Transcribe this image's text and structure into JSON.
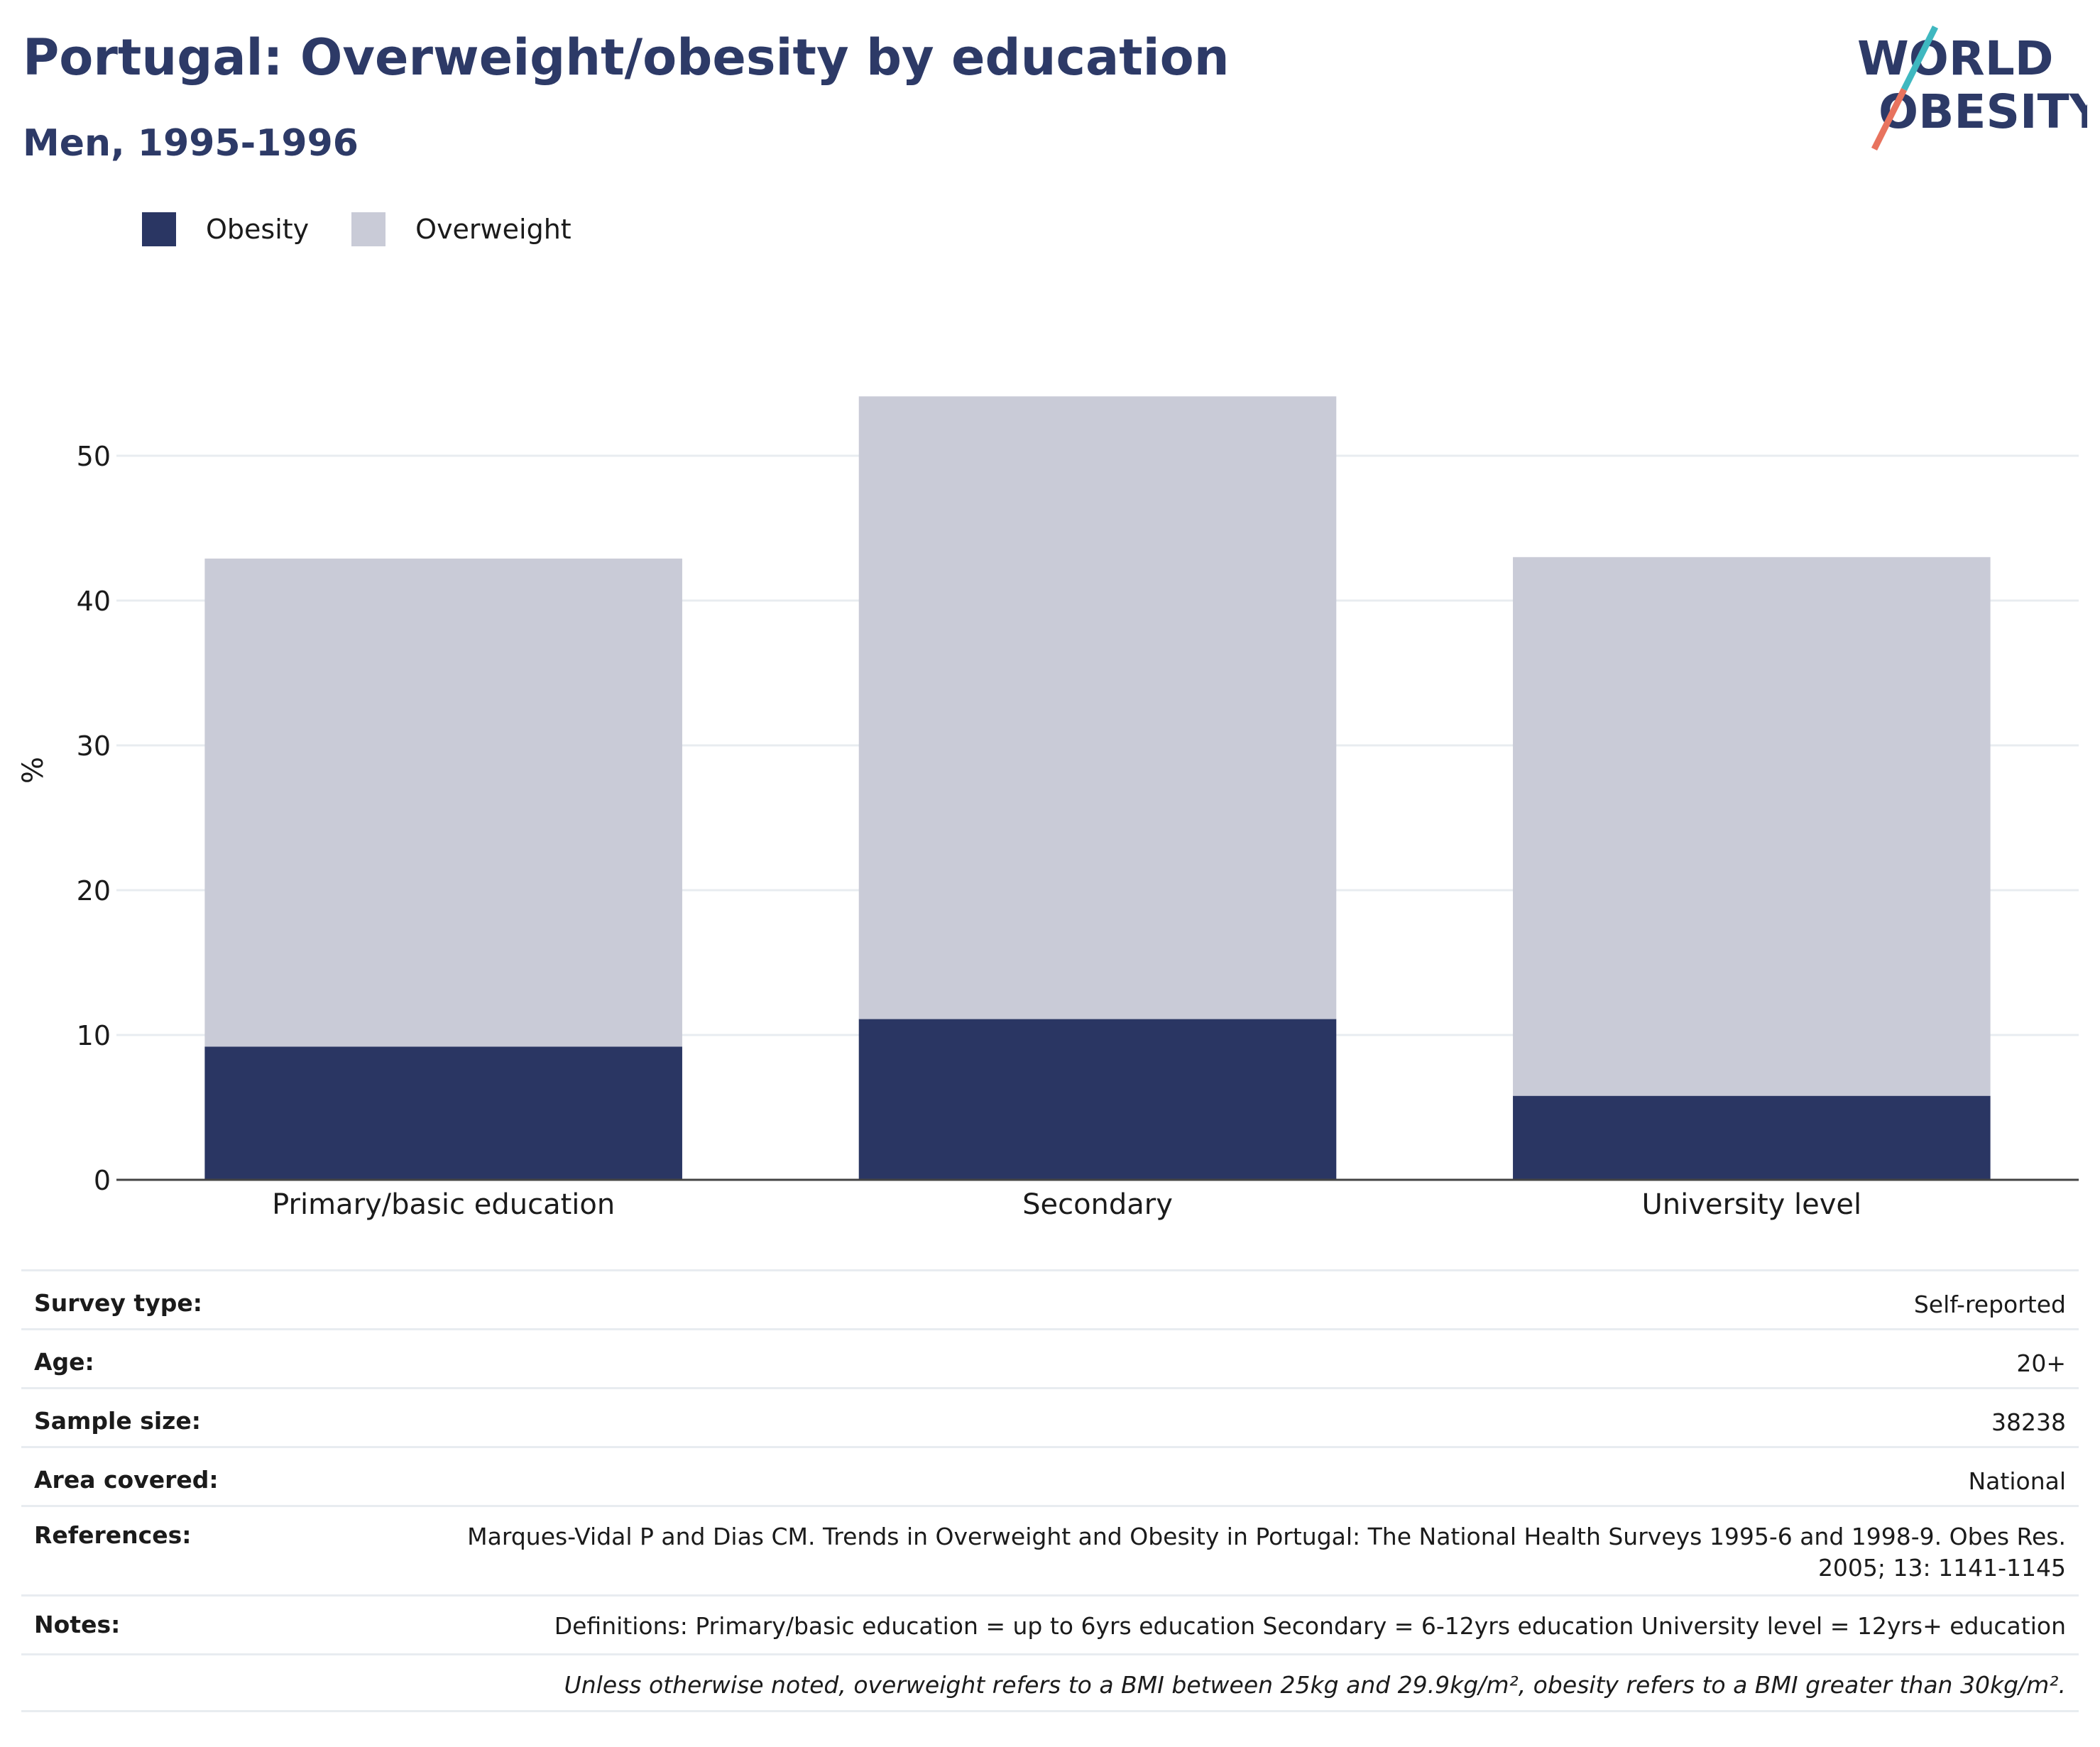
{
  "header": {
    "title": "Portugal: Overweight/obesity by education",
    "subtitle": "Men, 1995-1996"
  },
  "logo": {
    "line1": "WORLD",
    "line2": "OBESITY"
  },
  "legend": [
    {
      "label": "Obesity",
      "color": "#2a3663"
    },
    {
      "label": "Overweight",
      "color": "#c9cbd7"
    }
  ],
  "chart_data": {
    "type": "bar",
    "stacked": true,
    "categories": [
      "Primary/basic education",
      "Secondary",
      "University level"
    ],
    "series": [
      {
        "name": "Obesity",
        "values": [
          9.2,
          11.1,
          5.8
        ],
        "color": "#2a3663"
      },
      {
        "name": "Overweight",
        "values": [
          33.7,
          43.0,
          37.2
        ],
        "color": "#c9cbd7"
      }
    ],
    "ylabel": "%",
    "yticks": [
      0,
      10,
      20,
      30,
      40,
      50
    ],
    "ylim": [
      0,
      55
    ],
    "grid": true,
    "legend_position": "top-left"
  },
  "info": {
    "survey_type": {
      "label": "Survey type:",
      "value": "Self-reported"
    },
    "age": {
      "label": "Age:",
      "value": "20+"
    },
    "sample_size": {
      "label": "Sample size:",
      "value": "38238"
    },
    "area_covered": {
      "label": "Area covered:",
      "value": "National"
    },
    "references": {
      "label": "References:",
      "value": "Marques-Vidal P and Dias CM. Trends in Overweight and Obesity in Portugal: The National Health Surveys 1995-6 and 1998-9. Obes Res. 2005; 13: 1141-1145"
    },
    "notes": {
      "label": "Notes:",
      "value": "Definitions: Primary/basic education = up to 6yrs education Secondary = 6-12yrs education University level = 12yrs+ education"
    },
    "footnote": "Unless otherwise noted, overweight refers to a BMI between 25kg and 29.9kg/m², obesity refers to a BMI greater than 30kg/m²."
  }
}
